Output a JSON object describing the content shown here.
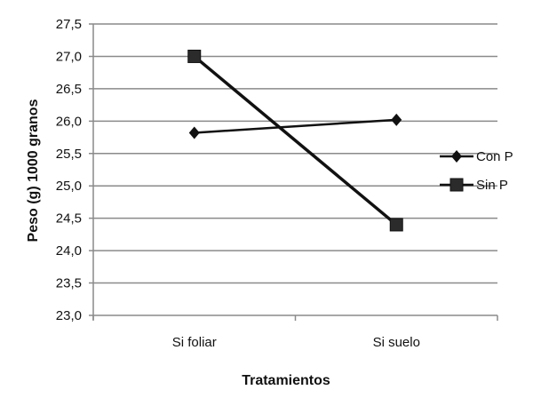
{
  "chart_data": {
    "type": "line",
    "title": "",
    "xlabel": "Tratamientos",
    "ylabel": "Peso (g)  1000 granos",
    "categories": [
      "Si foliar",
      "Si suelo"
    ],
    "ylim": [
      23.0,
      27.5
    ],
    "yticks": [
      "23,0",
      "23,5",
      "24,0",
      "24,5",
      "25,0",
      "25,5",
      "26,0",
      "26,5",
      "27,0",
      "27,5"
    ],
    "grid": true,
    "legend_position": "right",
    "series": [
      {
        "name": "Con P",
        "marker": "diamond",
        "values": [
          25.82,
          26.02
        ],
        "color": "#111111"
      },
      {
        "name": "Sin P",
        "marker": "square",
        "values": [
          27.0,
          24.4
        ],
        "color": "#111111"
      }
    ]
  }
}
